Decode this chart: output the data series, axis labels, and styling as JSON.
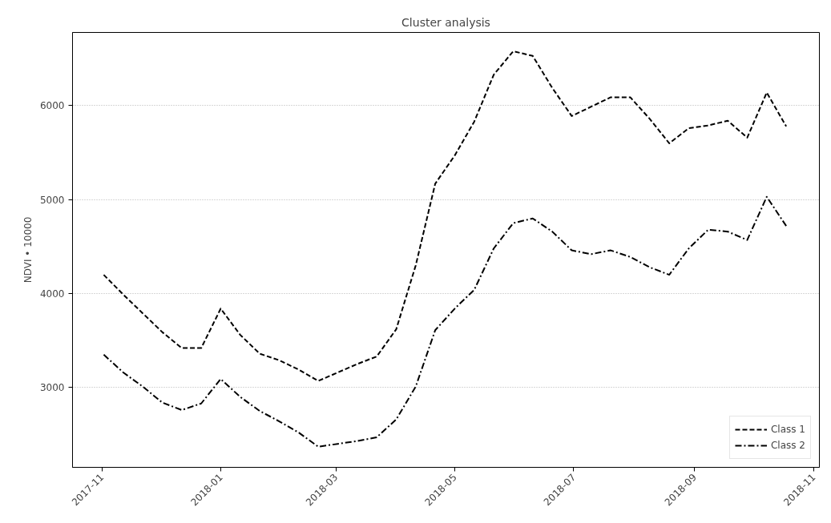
{
  "chart_data": {
    "type": "line",
    "title": "Cluster analysis",
    "ylabel": "NDVI • 10000",
    "x": [
      "2017-11-02",
      "2017-11-12",
      "2017-11-22",
      "2017-12-02",
      "2017-12-12",
      "2017-12-22",
      "2018-01-01",
      "2018-01-11",
      "2018-01-21",
      "2018-01-31",
      "2018-02-10",
      "2018-02-20",
      "2018-03-02",
      "2018-03-12",
      "2018-03-22",
      "2018-04-01",
      "2018-04-11",
      "2018-04-21",
      "2018-05-01",
      "2018-05-11",
      "2018-05-21",
      "2018-05-31",
      "2018-06-10",
      "2018-06-20",
      "2018-06-30",
      "2018-07-10",
      "2018-07-20",
      "2018-07-30",
      "2018-08-09",
      "2018-08-19",
      "2018-08-29",
      "2018-09-08",
      "2018-09-18",
      "2018-09-28",
      "2018-10-08",
      "2018-10-18"
    ],
    "series": [
      {
        "name": "Class 1",
        "color": "#000000",
        "line_style": "dashed",
        "values": [
          4200,
          3990,
          3790,
          3590,
          3420,
          3420,
          3840,
          3560,
          3360,
          3290,
          3190,
          3070,
          3160,
          3250,
          3330,
          3620,
          4300,
          5170,
          5470,
          5830,
          6330,
          6580,
          6530,
          6190,
          5890,
          5990,
          6090,
          6090,
          5860,
          5600,
          5760,
          5790,
          5840,
          5660,
          6140,
          5780
        ]
      },
      {
        "name": "Class 2",
        "color": "#000000",
        "line_style": "dashdot",
        "values": [
          3350,
          3160,
          3010,
          2840,
          2760,
          2830,
          3090,
          2900,
          2750,
          2640,
          2520,
          2370,
          2400,
          2430,
          2470,
          2660,
          3010,
          3610,
          3840,
          4040,
          4480,
          4750,
          4800,
          4660,
          4460,
          4420,
          4460,
          4390,
          4280,
          4200,
          4480,
          4680,
          4660,
          4570,
          5030,
          4720
        ]
      }
    ],
    "xlim": [
      "2017-10-17",
      "2018-11-04"
    ],
    "xticks": [
      "2017-11",
      "2018-01",
      "2018-03",
      "2018-05",
      "2018-07",
      "2018-09",
      "2018-11"
    ],
    "ylim": [
      2150,
      6780
    ],
    "yticks": [
      3000,
      4000,
      5000,
      6000
    ],
    "grid": "y",
    "legend": "bottom right"
  }
}
